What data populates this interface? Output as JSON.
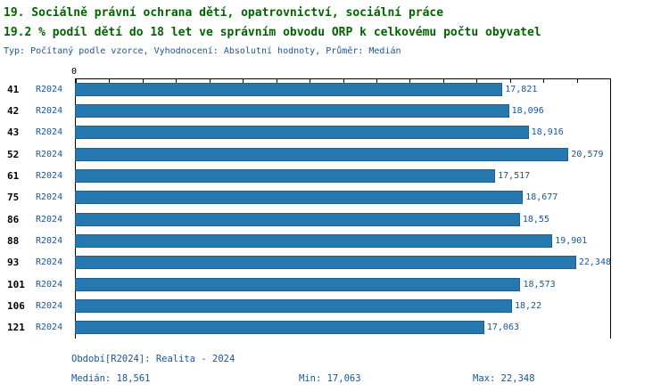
{
  "header": {
    "title_line1": "19. Sociálně právní ochrana dětí, opatrovnictví, sociální práce",
    "title_line2": "19.2 % podíl dětí do 18 let ve správním obvodu ORP k celkovému počtu obyvatel",
    "subtitle": "Typ: Počítaný podle vzorce, Vyhodnocení: Absolutní hodnoty, Průměr: Medián"
  },
  "chart_data": {
    "type": "bar",
    "orientation": "horizontal",
    "axis_zero_label": "0",
    "xlim": [
      0,
      22.348
    ],
    "ticks_count": 17,
    "categories": [
      "41",
      "42",
      "43",
      "52",
      "61",
      "75",
      "86",
      "88",
      "93",
      "101",
      "106",
      "121"
    ],
    "series": [
      {
        "name": "R2024",
        "values": [
          17.821,
          18.096,
          18.916,
          20.579,
          17.517,
          18.677,
          18.55,
          19.901,
          22.348,
          18.573,
          18.22,
          17.063
        ]
      }
    ],
    "rows": [
      {
        "id": "41",
        "period": "R2024",
        "value": 17.821,
        "value_label": "17,821"
      },
      {
        "id": "42",
        "period": "R2024",
        "value": 18.096,
        "value_label": "18,096"
      },
      {
        "id": "43",
        "period": "R2024",
        "value": 18.916,
        "value_label": "18,916"
      },
      {
        "id": "52",
        "period": "R2024",
        "value": 20.579,
        "value_label": "20,579"
      },
      {
        "id": "61",
        "period": "R2024",
        "value": 17.517,
        "value_label": "17,517"
      },
      {
        "id": "75",
        "period": "R2024",
        "value": 18.677,
        "value_label": "18,677"
      },
      {
        "id": "86",
        "period": "R2024",
        "value": 18.55,
        "value_label": "18,55"
      },
      {
        "id": "88",
        "period": "R2024",
        "value": 19.901,
        "value_label": "19,901"
      },
      {
        "id": "93",
        "period": "R2024",
        "value": 22.348,
        "value_label": "22,348"
      },
      {
        "id": "101",
        "period": "R2024",
        "value": 18.573,
        "value_label": "18,573"
      },
      {
        "id": "106",
        "period": "R2024",
        "value": 18.22,
        "value_label": "18,22"
      },
      {
        "id": "121",
        "period": "R2024",
        "value": 17.063,
        "value_label": "17,063"
      }
    ],
    "colors": {
      "bar": "#2878b0",
      "title_green": "#006400",
      "text_blue": "#17559c"
    }
  },
  "footer": {
    "period_line": "Období[R2024]: Realita - 2024",
    "median": "Medián: 18,561",
    "min": "Min: 17,063",
    "max": "Max: 22,348"
  }
}
